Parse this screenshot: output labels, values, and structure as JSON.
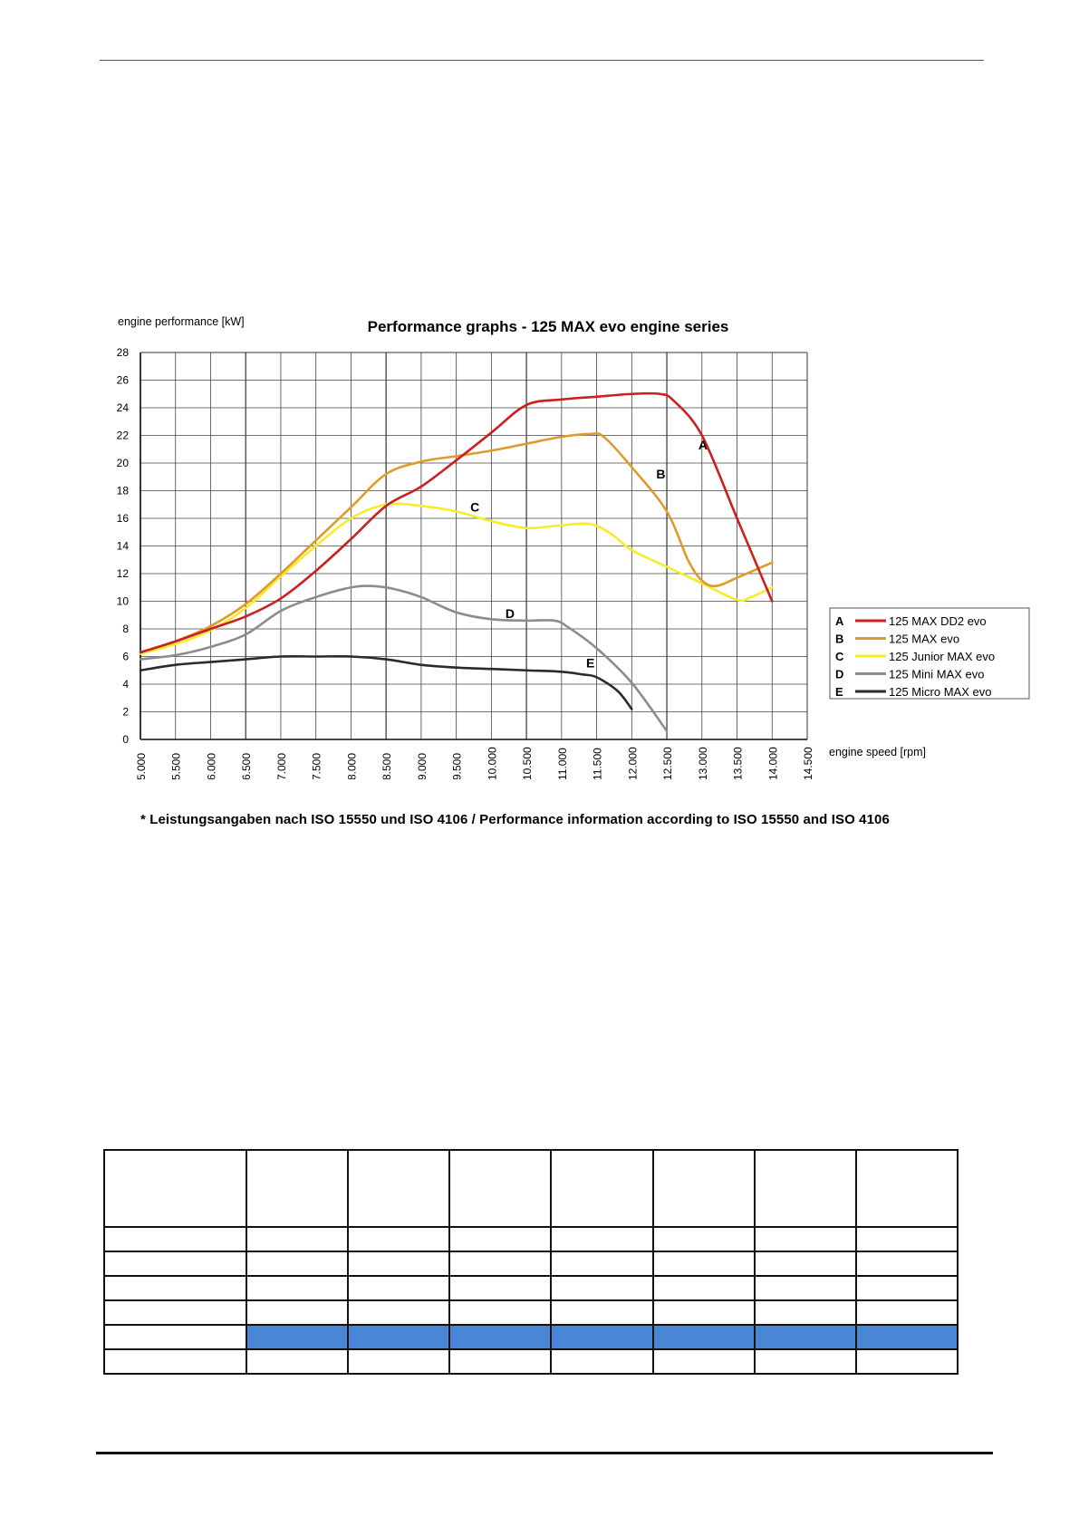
{
  "chart_data": {
    "type": "line",
    "title": "Performance graphs - 125 MAX evo engine series",
    "ylabel": "engine performance [kW]",
    "xlabel": "engine speed [rpm]",
    "xlim": [
      5000,
      14500
    ],
    "ylim": [
      0,
      28
    ],
    "x_ticks": [
      5000,
      5500,
      6000,
      6500,
      7000,
      7500,
      8000,
      8500,
      9000,
      9500,
      10000,
      10500,
      11000,
      11500,
      12000,
      12500,
      13000,
      13500,
      14000,
      14500
    ],
    "x_tick_labels": [
      "5.000",
      "5.500",
      "6.000",
      "6.500",
      "7.000",
      "7.500",
      "8.000",
      "8.500",
      "9.000",
      "9.500",
      "10.000",
      "10.500",
      "11.000",
      "11.500",
      "12.000",
      "12.500",
      "13.000",
      "13.500",
      "14.000",
      "14.500"
    ],
    "y_ticks": [
      0,
      2,
      4,
      6,
      8,
      10,
      12,
      14,
      16,
      18,
      20,
      22,
      24,
      26,
      28
    ],
    "grid": true,
    "legend_position": "right",
    "series": [
      {
        "letter": "A",
        "name": "125 MAX DD2 evo",
        "color": "#cc1f1f",
        "label_at": [
          12950,
          21.0
        ],
        "points": [
          [
            5000,
            6.3
          ],
          [
            5500,
            7.1
          ],
          [
            6000,
            8.0
          ],
          [
            6500,
            8.9
          ],
          [
            7000,
            10.2
          ],
          [
            7500,
            12.2
          ],
          [
            8000,
            14.5
          ],
          [
            8500,
            16.9
          ],
          [
            9000,
            18.3
          ],
          [
            9500,
            20.2
          ],
          [
            10000,
            22.2
          ],
          [
            10500,
            24.2
          ],
          [
            11000,
            24.6
          ],
          [
            11500,
            24.8
          ],
          [
            12000,
            25.0
          ],
          [
            12400,
            25.0
          ],
          [
            12600,
            24.5
          ],
          [
            13000,
            22.0
          ],
          [
            13500,
            16.0
          ],
          [
            14000,
            10.0
          ]
        ]
      },
      {
        "letter": "B",
        "name": "125 MAX evo",
        "color": "#e09a2c",
        "label_at": [
          12350,
          18.9
        ],
        "points": [
          [
            5000,
            6.3
          ],
          [
            5500,
            7.1
          ],
          [
            6000,
            8.2
          ],
          [
            6500,
            9.8
          ],
          [
            7000,
            12.0
          ],
          [
            7500,
            14.4
          ],
          [
            8000,
            16.8
          ],
          [
            8500,
            19.2
          ],
          [
            9000,
            20.1
          ],
          [
            9500,
            20.5
          ],
          [
            10000,
            20.9
          ],
          [
            10500,
            21.4
          ],
          [
            11000,
            21.9
          ],
          [
            11400,
            22.1
          ],
          [
            11600,
            21.9
          ],
          [
            12000,
            19.7
          ],
          [
            12500,
            16.5
          ],
          [
            12800,
            13.0
          ],
          [
            13000,
            11.5
          ],
          [
            13200,
            11.1
          ],
          [
            13500,
            11.7
          ],
          [
            14000,
            12.8
          ]
        ]
      },
      {
        "letter": "C",
        "name": "125 Junior MAX evo",
        "color": "#f7ec2a",
        "label_at": [
          9700,
          16.5
        ],
        "points": [
          [
            5000,
            6.2
          ],
          [
            5500,
            6.9
          ],
          [
            6000,
            7.9
          ],
          [
            6500,
            9.5
          ],
          [
            7000,
            11.8
          ],
          [
            7500,
            14.0
          ],
          [
            8000,
            16.0
          ],
          [
            8500,
            17.0
          ],
          [
            9000,
            16.9
          ],
          [
            9500,
            16.5
          ],
          [
            10000,
            15.8
          ],
          [
            10500,
            15.3
          ],
          [
            11000,
            15.5
          ],
          [
            11400,
            15.6
          ],
          [
            11700,
            14.9
          ],
          [
            12000,
            13.7
          ],
          [
            12500,
            12.5
          ],
          [
            13000,
            11.3
          ],
          [
            13500,
            10.1
          ],
          [
            13700,
            10.3
          ],
          [
            14000,
            11.0
          ]
        ]
      },
      {
        "letter": "D",
        "name": "125 Mini MAX evo",
        "color": "#8c8c8c",
        "label_at": [
          10200,
          8.8
        ],
        "points": [
          [
            5000,
            5.8
          ],
          [
            5500,
            6.1
          ],
          [
            6000,
            6.7
          ],
          [
            6500,
            7.6
          ],
          [
            7000,
            9.3
          ],
          [
            7500,
            10.3
          ],
          [
            8000,
            11.0
          ],
          [
            8300,
            11.1
          ],
          [
            8600,
            10.9
          ],
          [
            9000,
            10.3
          ],
          [
            9500,
            9.2
          ],
          [
            10000,
            8.7
          ],
          [
            10500,
            8.6
          ],
          [
            10900,
            8.6
          ],
          [
            11100,
            8.1
          ],
          [
            11500,
            6.6
          ],
          [
            12000,
            4.1
          ],
          [
            12500,
            0.6
          ]
        ]
      },
      {
        "letter": "E",
        "name": "125 Micro MAX evo",
        "color": "#2b2b2b",
        "label_at": [
          11350,
          5.2
        ],
        "points": [
          [
            5000,
            5.0
          ],
          [
            5500,
            5.4
          ],
          [
            6000,
            5.6
          ],
          [
            6500,
            5.8
          ],
          [
            7000,
            6.0
          ],
          [
            7500,
            6.0
          ],
          [
            8000,
            6.0
          ],
          [
            8500,
            5.8
          ],
          [
            9000,
            5.4
          ],
          [
            9500,
            5.2
          ],
          [
            10000,
            5.1
          ],
          [
            10500,
            5.0
          ],
          [
            11000,
            4.9
          ],
          [
            11300,
            4.7
          ],
          [
            11500,
            4.5
          ],
          [
            11800,
            3.5
          ],
          [
            12000,
            2.2
          ]
        ]
      }
    ]
  },
  "footnote": "* Leistungsangaben nach ISO 15550 und ISO 4106 / Performance information according to ISO 15550 and ISO 4106",
  "table": {
    "columns": 8,
    "body_rows": 6,
    "highlight_row": 4,
    "highlight_color": "#4a86d6"
  }
}
